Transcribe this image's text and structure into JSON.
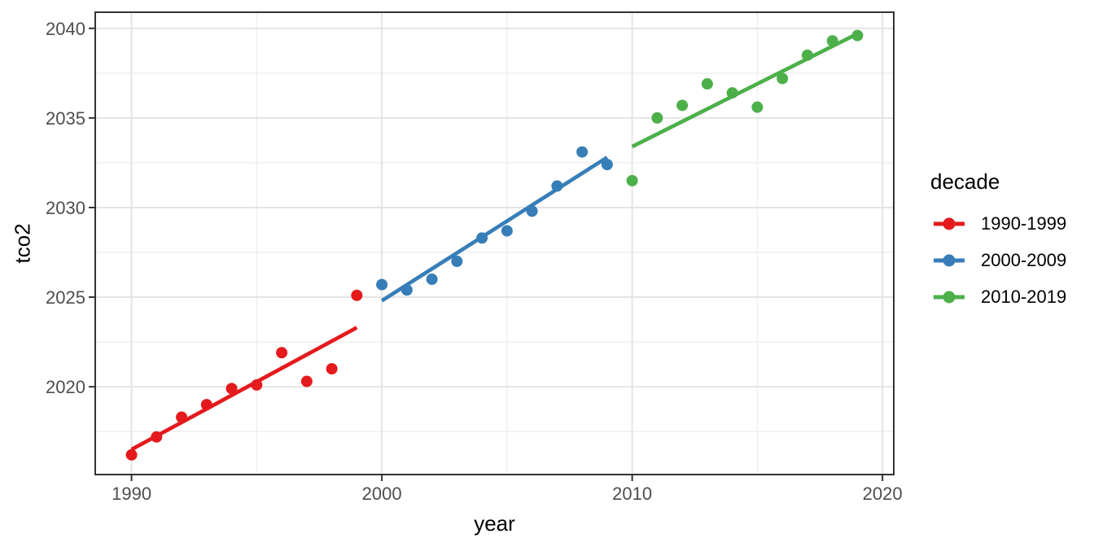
{
  "chart_data": {
    "type": "scatter",
    "title": "",
    "xlabel": "year",
    "ylabel": "tco2",
    "legend_title": "decade",
    "legend_position": "right",
    "grid": true,
    "xlim": [
      1988.55,
      2020.45
    ],
    "ylim": [
      2015.1,
      2040.9
    ],
    "x_major_ticks": [
      1990,
      2000,
      2010,
      2020
    ],
    "x_minor_gridlines": [
      1995,
      2005,
      2015
    ],
    "y_major_ticks": [
      2020,
      2025,
      2030,
      2035,
      2040
    ],
    "y_minor_gridlines": [
      2017.5,
      2022.5,
      2027.5,
      2032.5,
      2037.5
    ],
    "series": [
      {
        "name": "1990-1999",
        "color": "#E41A1C",
        "x": [
          1990,
          1991,
          1992,
          1993,
          1994,
          1995,
          1996,
          1997,
          1998,
          1999
        ],
        "y": [
          2016.2,
          2017.2,
          2018.3,
          2019.0,
          2019.9,
          2020.1,
          2021.9,
          2020.3,
          2021.0,
          2025.1
        ],
        "trend_line": {
          "x1": 1990,
          "y1": 2016.5,
          "x2": 1999,
          "y2": 2023.3
        }
      },
      {
        "name": "2000-2009",
        "color": "#377EB8",
        "x": [
          2000,
          2001,
          2002,
          2003,
          2004,
          2005,
          2006,
          2007,
          2008,
          2009
        ],
        "y": [
          2025.7,
          2025.4,
          2026.0,
          2027.0,
          2028.3,
          2028.7,
          2029.8,
          2031.2,
          2033.1,
          2032.4
        ],
        "trend_line": {
          "x1": 2000,
          "y1": 2024.8,
          "x2": 2009,
          "y2": 2032.8
        }
      },
      {
        "name": "2010-2019",
        "color": "#4DAF4A",
        "x": [
          2010,
          2011,
          2012,
          2013,
          2014,
          2015,
          2016,
          2017,
          2018,
          2019
        ],
        "y": [
          2031.5,
          2035.0,
          2035.7,
          2036.9,
          2036.4,
          2035.6,
          2037.2,
          2038.5,
          2039.3,
          2039.6
        ],
        "trend_line": {
          "x1": 2010,
          "y1": 2033.4,
          "x2": 2019,
          "y2": 2039.7
        }
      }
    ],
    "style": {
      "panel_background": "#FFFFFF",
      "panel_border_color": "#333333",
      "grid_major_color": "#E4E4E4",
      "grid_minor_color": "#EFEFEF",
      "tick_color": "#333333",
      "tick_label_color": "#4D4D4D",
      "point_radius": 7,
      "line_width": 4.7
    }
  }
}
